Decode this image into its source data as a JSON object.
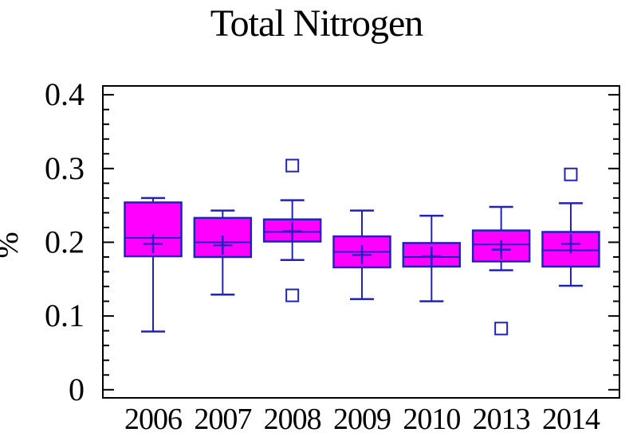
{
  "chart_data": {
    "type": "box",
    "title": "Total Nitrogen",
    "ylabel": "%",
    "xlabel": "",
    "ylim": [
      -0.011,
      0.412
    ],
    "grid": false,
    "legend": "none",
    "y_major_ticks": [
      0,
      0.1,
      0.2,
      0.3,
      0.4
    ],
    "y_tick_labels": [
      "0",
      "0.1",
      "0.2",
      "0.3",
      "0.4"
    ],
    "y_minor_step": 0.02,
    "categories": [
      "2006",
      "2007",
      "2008",
      "2009",
      "2010",
      "2013",
      "2014"
    ],
    "series": [
      {
        "category": "2006",
        "whisker_low": 0.079,
        "q1": 0.181,
        "median": 0.206,
        "q3": 0.254,
        "whisker_high": 0.26,
        "mean": 0.198,
        "outliers": []
      },
      {
        "category": "2007",
        "whisker_low": 0.129,
        "q1": 0.18,
        "median": 0.2,
        "q3": 0.233,
        "whisker_high": 0.243,
        "mean": 0.196,
        "outliers": []
      },
      {
        "category": "2008",
        "whisker_low": 0.176,
        "q1": 0.201,
        "median": 0.214,
        "q3": 0.231,
        "whisker_high": 0.257,
        "mean": 0.215,
        "outliers": [
          0.304,
          0.128
        ]
      },
      {
        "category": "2009",
        "whisker_low": 0.123,
        "q1": 0.166,
        "median": 0.187,
        "q3": 0.208,
        "whisker_high": 0.243,
        "mean": 0.183,
        "outliers": []
      },
      {
        "category": "2010",
        "whisker_low": 0.12,
        "q1": 0.167,
        "median": 0.18,
        "q3": 0.199,
        "whisker_high": 0.236,
        "mean": 0.181,
        "outliers": []
      },
      {
        "category": "2013",
        "whisker_low": 0.162,
        "q1": 0.174,
        "median": 0.197,
        "q3": 0.216,
        "whisker_high": 0.248,
        "mean": 0.19,
        "outliers": [
          0.083
        ]
      },
      {
        "category": "2014",
        "whisker_low": 0.141,
        "q1": 0.167,
        "median": 0.189,
        "q3": 0.214,
        "whisker_high": 0.253,
        "mean": 0.198,
        "outliers": [
          0.292
        ]
      }
    ],
    "colors": {
      "box_fill": "#ff00ff",
      "line": "#2121bd",
      "axis": "#000000",
      "background": "#ffffff",
      "outlier_fill": "#ffffff"
    }
  }
}
